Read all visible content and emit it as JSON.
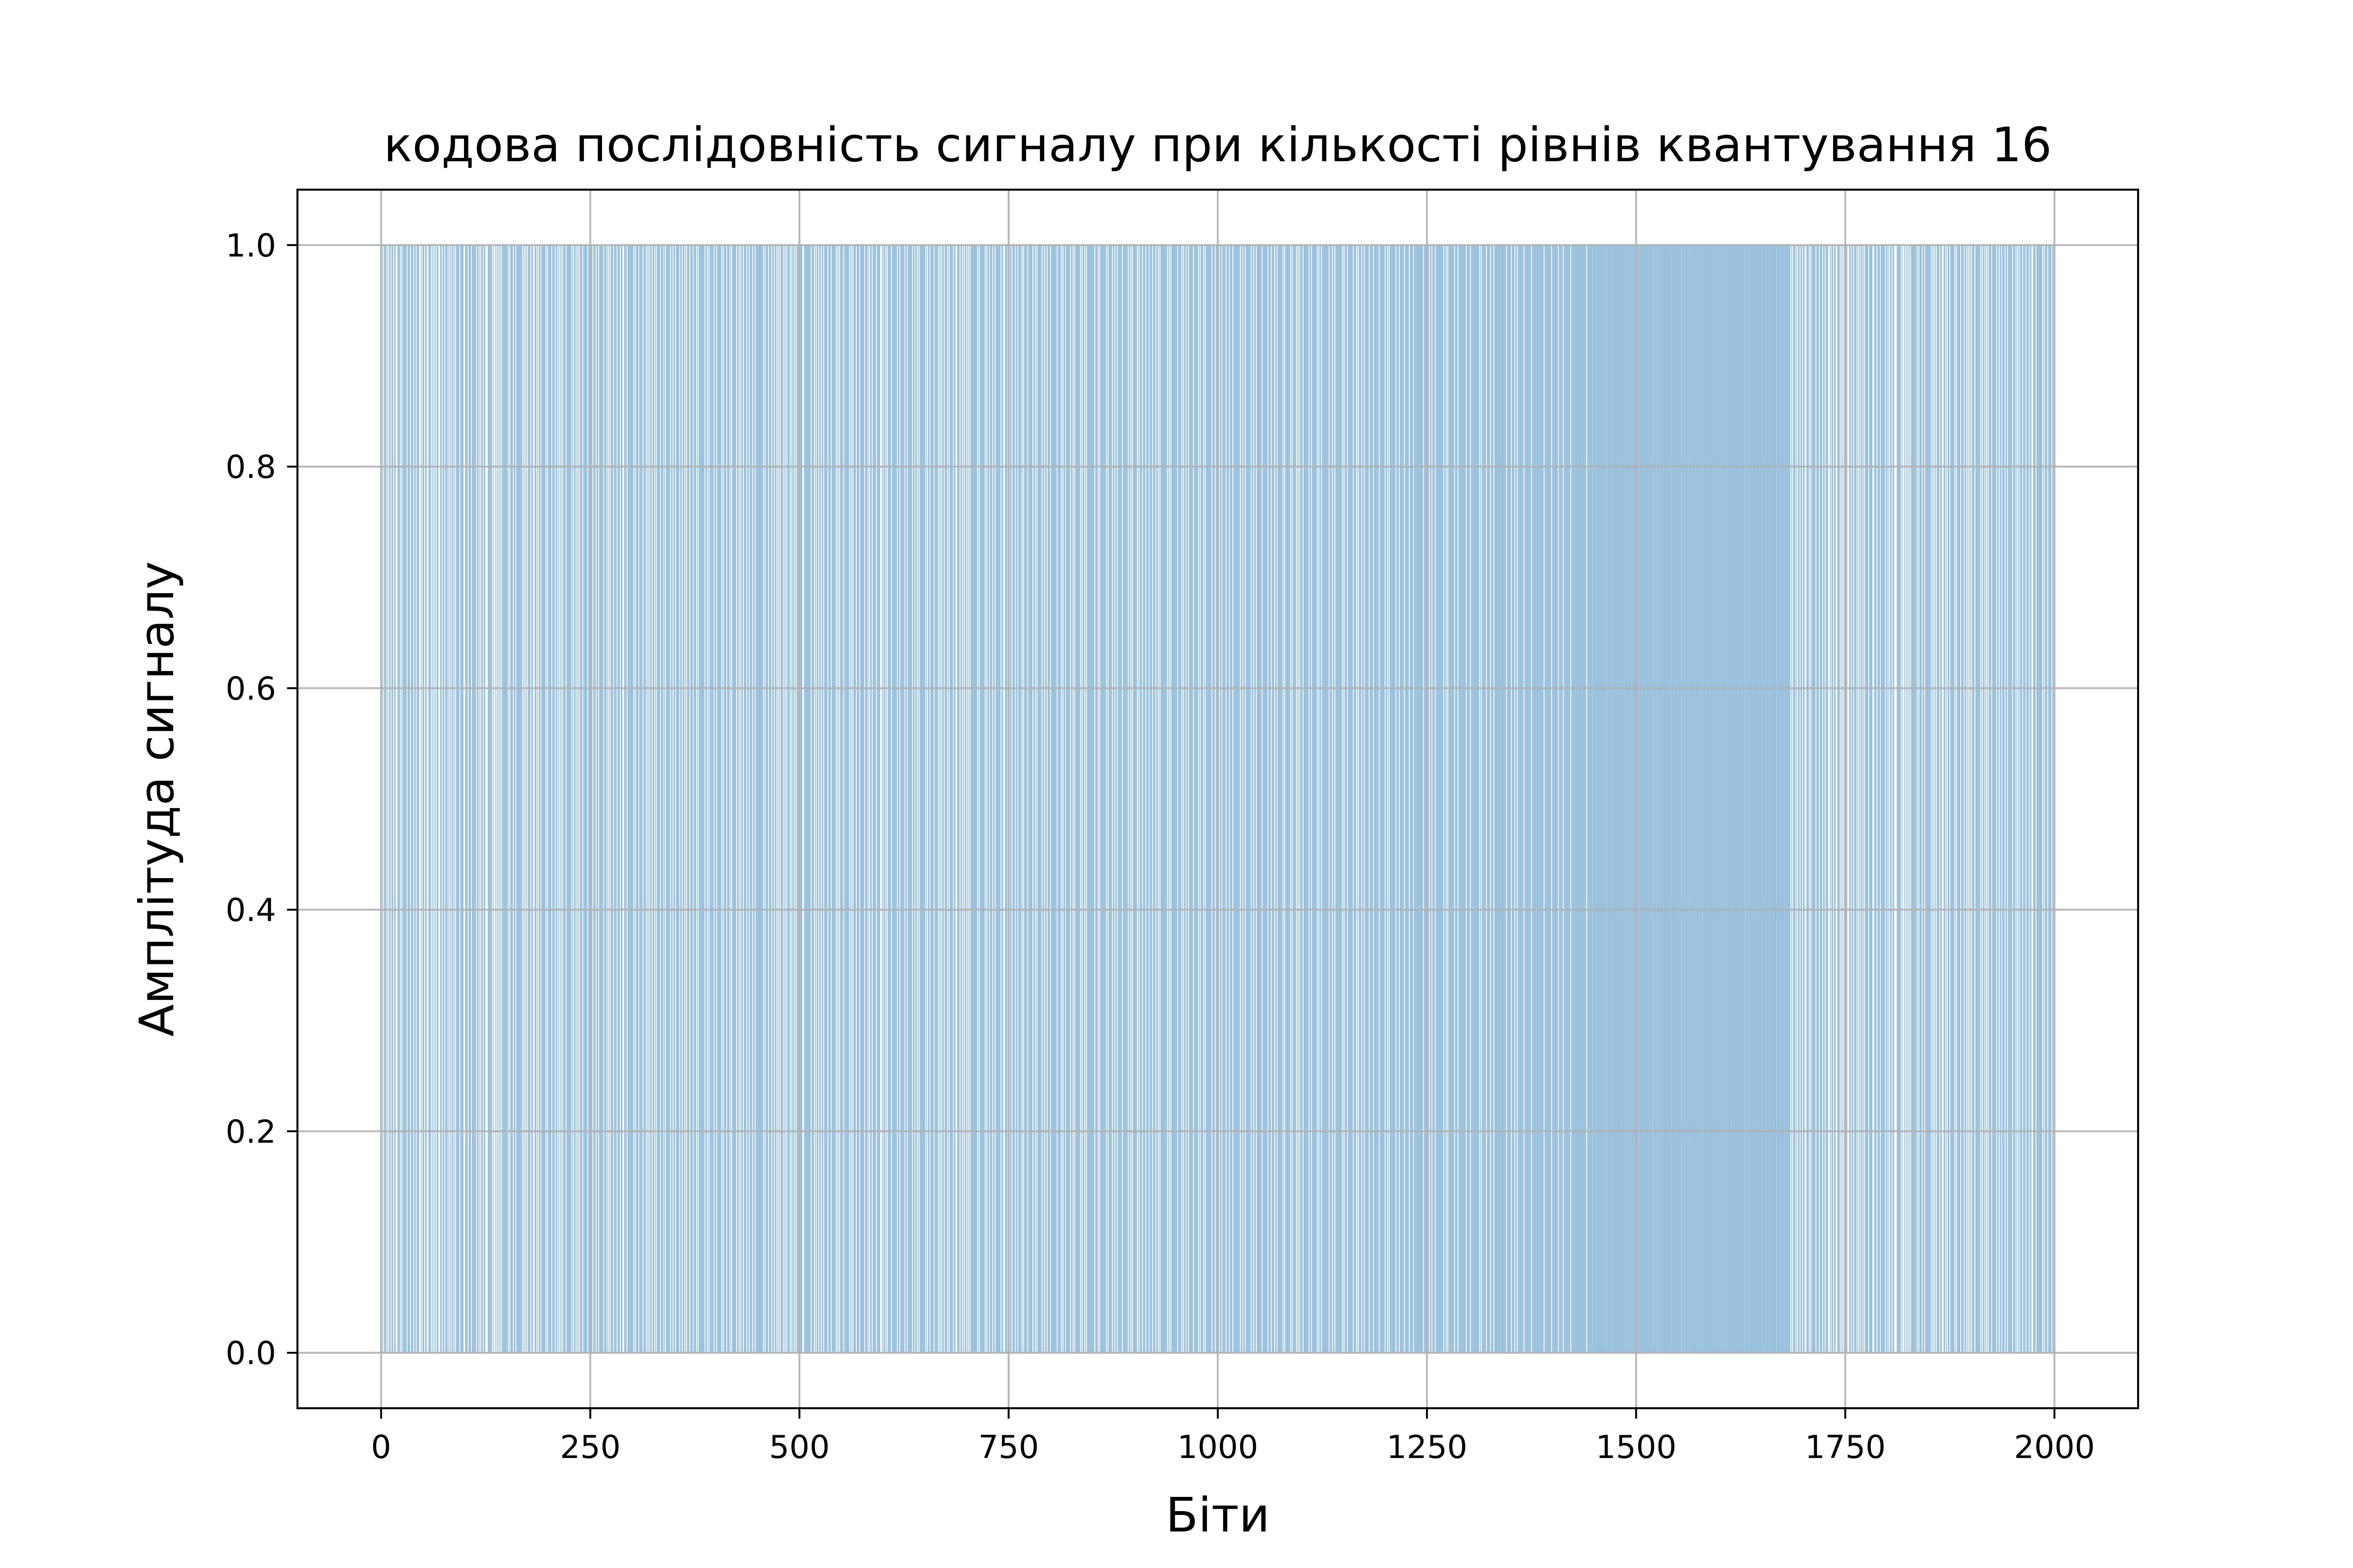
{
  "chart_data": {
    "type": "bar",
    "title": "кодова послідовність сигналу при кількості рівнів квантування 16",
    "xlabel": "Біти",
    "ylabel": "Амплітуда сигналу",
    "xlim": [
      -100,
      2100
    ],
    "ylim": [
      -0.05,
      1.05
    ],
    "xticks": [
      0,
      250,
      500,
      750,
      1000,
      1250,
      1500,
      1750,
      2000
    ],
    "xtick_labels": [
      "0",
      "250",
      "500",
      "750",
      "1000",
      "1250",
      "1500",
      "1750",
      "2000"
    ],
    "yticks": [
      0.0,
      0.2,
      0.4,
      0.6,
      0.8,
      1.0
    ],
    "ytick_labels": [
      "0.0",
      "0.2",
      "0.4",
      "0.6",
      "0.8",
      "1.0"
    ],
    "grid": true,
    "bar_color": "#1f77b4",
    "bit_range": [
      0,
      2000
    ],
    "bit_values": "1010111010110110110011101011111011101110110111001011011001110101010110011011011101010110101111011110011101110111110110101101100011111010010101010111111101011101101111111010101011101100110101101111101011110111011010101011101111110101101010111011111011011011101101111101110101011101110111011001110111111101011101111011101010110110101111011101011111011011011110110110101110111011101011111110110101111101101111101011101110101111101101011011101101110110111111111010111011101101101010111010101110101101011101110011111111011101011011011011110111011111010101111011111101010111011101111101110101101111011110010110101111011111101101111101101111101101101011111110101101111011110101011011101011110110011101101011010101111111101011111101011011101101111110110011101011011101101111010111101111101101011111011011011101111111011110101101111101101011111101011010111111111011101011111110101111011011011111011111101101011111010111011101110111011101101011111111010101111111011110101101101111101111101011101011111110111011010110111101110111011111111011011011111101101101111110111111011101110110111111010111111010111101010111011111101101111110101101111111101110110111111110101110111111011101011101101111101111011111101111110110101111111011101111101111101111011111111111011101101101110111111111011010111111101110111111111011110111111111101011111011110111011111111111111011111011101101111111011111111011111111111111011111111011111110111110111111110111111111111111111011111111111111111111111111111111111111111111111111111111111111111111111111111111111111111111111111111111111111111111111111111111111111111111111111111111111111111111111111111111111111111111111111111111111111111111111111111111111111111111111111"
  }
}
